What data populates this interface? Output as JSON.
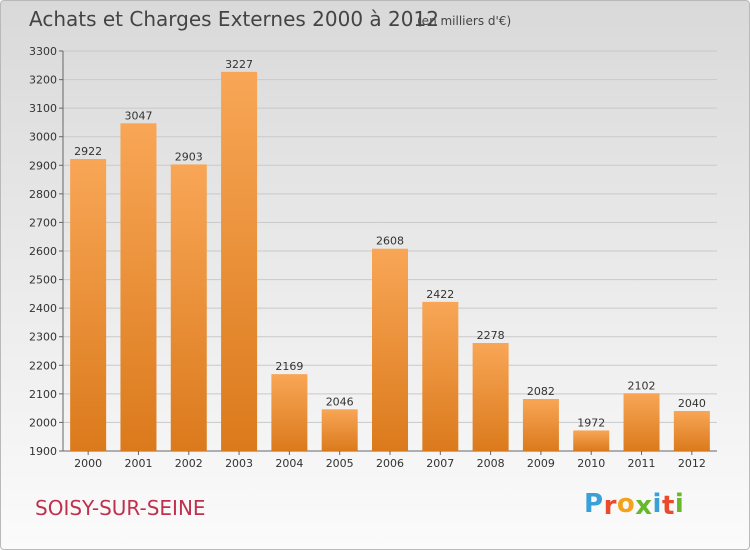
{
  "header": {
    "title": "Achats et Charges Externes 2000 à 2012",
    "subtitle": "(en milliers d'€)"
  },
  "footer": {
    "commune": "SOISY-SUR-SEINE",
    "logo_text": "Proxiti"
  },
  "colors": {
    "bar_top": "#f8a656",
    "bar_bottom": "#db7a1c",
    "grid": "#c9c9c9",
    "commune_text": "#c0304e",
    "logo_letters": [
      "#3aa0d8",
      "#e94b2c",
      "#f2a31b",
      "#68b82e",
      "#3aa0d8",
      "#e94b2c",
      "#68b82e"
    ]
  },
  "chart_data": {
    "type": "bar",
    "title": "Achats et Charges Externes 2000 à 2012",
    "subtitle": "(en milliers d'€)",
    "xlabel": "",
    "ylabel": "",
    "categories": [
      "2000",
      "2001",
      "2002",
      "2003",
      "2004",
      "2005",
      "2006",
      "2007",
      "2008",
      "2009",
      "2010",
      "2011",
      "2012"
    ],
    "values": [
      2922,
      3047,
      2903,
      3227,
      2169,
      2046,
      2608,
      2422,
      2278,
      2082,
      1972,
      2102,
      2040
    ],
    "ylim": [
      1900,
      3300
    ],
    "yticks": [
      1900,
      2000,
      2100,
      2200,
      2300,
      2400,
      2500,
      2600,
      2700,
      2800,
      2900,
      3000,
      3100,
      3200,
      3300
    ],
    "grid": true,
    "data_labels": true
  }
}
